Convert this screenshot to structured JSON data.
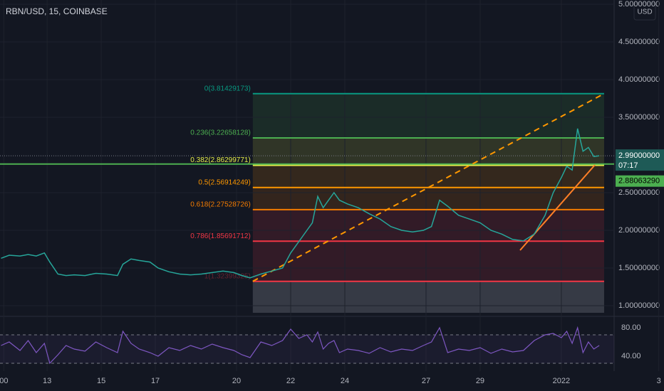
{
  "chart_data": [
    {
      "type": "line",
      "title": "RBN/USD, 15, COINBASE",
      "currency": "USD",
      "color": "#26a69a",
      "x": [
        11.3,
        11.6,
        12,
        12.3,
        12.6,
        12.9,
        13.1,
        13.4,
        13.7,
        14,
        14.4,
        14.8,
        15.2,
        15.6,
        15.8,
        16.1,
        16.4,
        16.8,
        17.1,
        17.5,
        17.9,
        18.3,
        18.7,
        19.1,
        19.5,
        19.9,
        20.2,
        20.5,
        20.9,
        21.3,
        21.7,
        22.0,
        22.3,
        22.6,
        22.8,
        23.0,
        23.2,
        23.4,
        23.6,
        23.8,
        24.1,
        24.5,
        24.9,
        25.3,
        25.7,
        26.1,
        26.5,
        26.9,
        27.2,
        27.5,
        27.8,
        28.2,
        28.6,
        29.0,
        29.4,
        29.8,
        30.2,
        30.6,
        31.0,
        31.4,
        31.7,
        32.0,
        32.2,
        32.4,
        32.6,
        32.8,
        33.0,
        33.2,
        33.4
      ],
      "values": [
        1.63,
        1.67,
        1.66,
        1.68,
        1.66,
        1.7,
        1.58,
        1.42,
        1.4,
        1.41,
        1.4,
        1.43,
        1.42,
        1.4,
        1.55,
        1.62,
        1.6,
        1.58,
        1.5,
        1.45,
        1.42,
        1.41,
        1.42,
        1.44,
        1.46,
        1.44,
        1.4,
        1.37,
        1.42,
        1.46,
        1.5,
        1.7,
        1.85,
        2.0,
        2.1,
        2.45,
        2.3,
        2.4,
        2.5,
        2.4,
        2.35,
        2.3,
        2.22,
        2.15,
        2.05,
        2.0,
        1.98,
        2.0,
        2.05,
        2.4,
        2.32,
        2.2,
        2.15,
        2.1,
        2.0,
        1.95,
        1.88,
        1.86,
        1.95,
        2.2,
        2.5,
        2.7,
        2.85,
        2.8,
        3.35,
        3.05,
        3.1,
        2.98,
        2.99
      ],
      "xlim": [
        11.26,
        33.95
      ],
      "xticks": [
        {
          "value": 11.4,
          "label": "00"
        },
        13,
        15,
        17,
        20,
        22,
        24,
        27,
        29,
        {
          "value": 32,
          "label": "2022"
        },
        {
          "value": 35.6,
          "label": "3"
        }
      ],
      "ylim": [
        0.906,
        5.057
      ],
      "yticks": [
        {
          "value": 1,
          "label": "1.00000000"
        },
        {
          "value": 1.5,
          "label": "1.50000000"
        },
        {
          "value": 2,
          "label": "2.00000000"
        },
        {
          "value": 2.5,
          "label": "2.50000000"
        },
        {
          "value": 3.5,
          "label": "3.50000000"
        },
        {
          "value": 4,
          "label": "4.00000000"
        },
        {
          "value": 4.5,
          "label": "4.50000000"
        },
        {
          "value": 5,
          "label": "5.00000000"
        }
      ],
      "last_price": {
        "value": 2.99,
        "label": "2.99000000"
      },
      "countdown": "07:17",
      "horizontal_line": {
        "value": 2.8806329,
        "label": "2.88063290",
        "color": "#4caf50"
      },
      "fib": {
        "x_start": 20.6,
        "x_end": 33.58,
        "levels": [
          {
            "price": 3.81429173,
            "label": "0(3.81429173)",
            "color": "#089981"
          },
          {
            "price": 3.22658128,
            "label": "0.236(3.22658128)",
            "color": "#4caf50"
          },
          {
            "price": 2.86299771,
            "label": "0.382(2.86299771)",
            "color": "#e6ee4a"
          },
          {
            "price": 2.56914249,
            "label": "0.5(2.56914249)",
            "color": "#ff9800"
          },
          {
            "price": 2.27528726,
            "label": "0.618(2.27528726)",
            "color": "#f57c00"
          },
          {
            "price": 1.85691712,
            "label": "0.786(1.85691712)",
            "color": "#f23645"
          },
          {
            "price": 1.32399325,
            "label": "1(1.32399325)",
            "color": "#f23645"
          }
        ]
      }
    },
    {
      "type": "rsi",
      "color": "#7e57c2",
      "values": [
        55,
        60,
        48,
        62,
        45,
        58,
        30,
        42,
        55,
        50,
        47,
        60,
        52,
        45,
        75,
        58,
        50,
        45,
        40,
        52,
        48,
        55,
        50,
        57,
        52,
        48,
        42,
        38,
        60,
        55,
        62,
        78,
        65,
        70,
        60,
        74,
        50,
        58,
        62,
        45,
        50,
        48,
        44,
        52,
        46,
        50,
        48,
        55,
        60,
        80,
        45,
        50,
        48,
        52,
        44,
        50,
        46,
        48,
        62,
        70,
        72,
        66,
        75,
        58,
        80,
        45,
        60,
        50,
        55
      ],
      "ylim": [
        19,
        93
      ],
      "yticks": [
        {
          "value": 80,
          "label": "80.00"
        },
        {
          "value": 40,
          "label": "40.00"
        }
      ],
      "bands": [
        70,
        30
      ]
    }
  ]
}
